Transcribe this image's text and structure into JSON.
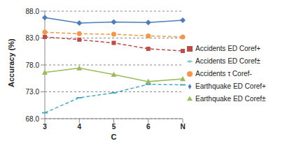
{
  "chart_data": {
    "type": "line",
    "x_label": "C",
    "y_label": "Accuracy (%)",
    "categories": [
      "3",
      "4",
      "5",
      "6",
      "N"
    ],
    "series": [
      {
        "name": "Earthquake ED Coref+",
        "color": "#4a7ebb",
        "marker": "diamond",
        "line_style": "solid",
        "values": [
          86.8,
          85.8,
          86.0,
          85.9,
          86.3
        ]
      },
      {
        "name": "Earthquake ED Coref±",
        "color": "#9bbb59",
        "marker": "triangle",
        "line_style": "solid",
        "values": [
          76.6,
          77.4,
          76.2,
          74.9,
          75.4
        ]
      },
      {
        "name": "Accidents ED Coref+",
        "color": "#be4b48",
        "marker": "square",
        "line_style": "dashed",
        "values": [
          83.2,
          82.7,
          82.1,
          81.0,
          80.6
        ]
      },
      {
        "name": "Accidents ED Coref±",
        "color": "#4bacc6",
        "marker": "dash",
        "line_style": "dashed",
        "values": [
          69.1,
          71.9,
          72.8,
          74.4,
          74.3
        ]
      },
      {
        "name": "Accidents τ Coref-",
        "color": "#f79646",
        "marker": "circle",
        "line_style": "dashed",
        "values": [
          84.1,
          83.8,
          83.7,
          83.4,
          83.2
        ]
      }
    ],
    "ylim": [
      68,
      88
    ],
    "yticks": [
      {
        "value": 68,
        "label": "68.0"
      },
      {
        "value": 73,
        "label": "73.0"
      },
      {
        "value": 78,
        "label": "78.0"
      },
      {
        "value": 83,
        "label": "83.0"
      },
      {
        "value": 88,
        "label": "88.0"
      }
    ],
    "grid": true,
    "legend": "right"
  }
}
